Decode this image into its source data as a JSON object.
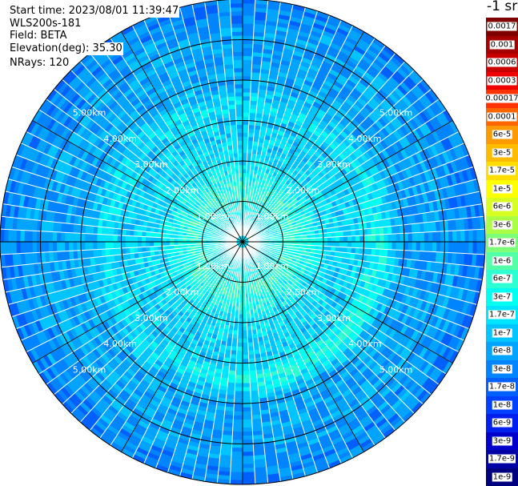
{
  "info": {
    "start_time": "Start time: 2023/08/01 11:39:47",
    "instrument": "WLS200s-181",
    "field": "Field: BETA",
    "elevation": "Elevation(deg): 35.30",
    "nrays": "NRays: 120"
  },
  "colorbar": {
    "unit": "-1 sr",
    "levels": [
      {
        "label": "0.0017",
        "color": "#7f0000"
      },
      {
        "label": "0.001",
        "color": "#a40000"
      },
      {
        "label": "0.0006",
        "color": "#c80000"
      },
      {
        "label": "0.0003",
        "color": "#ee0000"
      },
      {
        "label": "0.00017",
        "color": "#ff3300"
      },
      {
        "label": "0.0001",
        "color": "#ff6600"
      },
      {
        "label": "6e-5",
        "color": "#ff9900"
      },
      {
        "label": "3e-5",
        "color": "#ffbb00"
      },
      {
        "label": "1.7e-5",
        "color": "#ffdd00"
      },
      {
        "label": "1e-5",
        "color": "#ffff00"
      },
      {
        "label": "6e-6",
        "color": "#d8ff22"
      },
      {
        "label": "3e-6",
        "color": "#aaff44"
      },
      {
        "label": "1.7e-6",
        "color": "#7dff7a"
      },
      {
        "label": "1e-6",
        "color": "#55ffa8"
      },
      {
        "label": "6e-7",
        "color": "#2dffd2"
      },
      {
        "label": "3e-7",
        "color": "#00fff0"
      },
      {
        "label": "1.7e-7",
        "color": "#00e4ff"
      },
      {
        "label": "1e-7",
        "color": "#00c4ff"
      },
      {
        "label": "6e-8",
        "color": "#00a4ff"
      },
      {
        "label": "3e-8",
        "color": "#0084ff"
      },
      {
        "label": "1.7e-8",
        "color": "#0060ff"
      },
      {
        "label": "1e-8",
        "color": "#0040ff"
      },
      {
        "label": "6e-9",
        "color": "#0020ee"
      },
      {
        "label": "3e-9",
        "color": "#0000cc"
      },
      {
        "label": "1.7e-9",
        "color": "#0000a4"
      },
      {
        "label": "1e-9",
        "color": "#00007f"
      }
    ]
  },
  "chart_data": {
    "type": "heatmap",
    "projection": "polar-ppi",
    "field": "BETA",
    "elevation_deg": 35.3,
    "n_rays": 120,
    "max_range_km": 6.0,
    "range_ring_km": [
      1,
      2,
      3,
      4,
      5
    ],
    "radial_lines_deg": [
      0,
      30,
      60,
      90,
      120,
      150,
      180,
      210,
      240,
      270,
      300,
      330
    ],
    "range_labels": {
      "1": "1.00km",
      "2": "2.00km",
      "3": "3.00km",
      "4": "4.00km",
      "5": "5.00km"
    },
    "typical_level_by_ring_km": [
      {
        "range_km": 0.5,
        "level": "1.7e-7"
      },
      {
        "range_km": 1.2,
        "level": "6e-7"
      },
      {
        "range_km": 2.0,
        "level": "1.7e-7"
      },
      {
        "range_km": 3.0,
        "level": "1e-7"
      },
      {
        "range_km": 4.0,
        "level": "6e-8"
      },
      {
        "range_km": 5.0,
        "level": "6e-8"
      },
      {
        "range_km": 5.8,
        "level": "3e-8"
      }
    ]
  }
}
